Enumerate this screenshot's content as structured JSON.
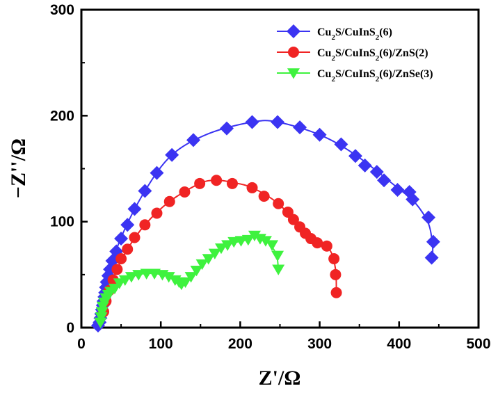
{
  "chart_data": {
    "type": "scatter",
    "title": "",
    "xlabel": "Z'/Ω",
    "ylabel": "−Z''/Ω",
    "xlim": [
      0,
      500
    ],
    "ylim": [
      0,
      300
    ],
    "xticks": [
      "0",
      "100",
      "200",
      "300",
      "400",
      "500"
    ],
    "yticks": [
      "0",
      "100",
      "200",
      "300"
    ],
    "grid": false,
    "legend_position": "top-right",
    "series": [
      {
        "name": "Cu2S/CuInS2(6)",
        "color": "#3b34f2",
        "marker": "diamond",
        "points": [
          [
            21,
            2
          ],
          [
            23,
            5
          ],
          [
            24,
            9
          ],
          [
            25,
            13
          ],
          [
            26,
            17
          ],
          [
            27,
            21
          ],
          [
            28,
            25
          ],
          [
            29,
            29
          ],
          [
            30,
            33
          ],
          [
            31,
            38
          ],
          [
            32,
            43
          ],
          [
            34,
            49
          ],
          [
            36,
            55
          ],
          [
            39,
            63
          ],
          [
            44,
            72
          ],
          [
            50,
            84
          ],
          [
            58,
            97
          ],
          [
            67,
            112
          ],
          [
            80,
            129
          ],
          [
            95,
            146
          ],
          [
            114,
            163
          ],
          [
            141,
            177
          ],
          [
            183,
            188
          ],
          [
            215,
            194
          ],
          [
            247,
            194
          ],
          [
            275,
            189
          ],
          [
            300,
            182
          ],
          [
            327,
            173
          ],
          [
            345,
            162
          ],
          [
            357,
            153
          ],
          [
            372,
            147
          ],
          [
            381,
            139
          ],
          [
            398,
            130
          ],
          [
            413,
            128
          ],
          [
            417,
            121
          ],
          [
            437,
            104
          ],
          [
            443,
            81
          ],
          [
            441,
            66
          ]
        ],
        "fit": [
          [
            21,
            2
          ],
          [
            26,
            18
          ],
          [
            34,
            48
          ],
          [
            50,
            85
          ],
          [
            80,
            129
          ],
          [
            114,
            163
          ],
          [
            160,
            183
          ],
          [
            215,
            194
          ],
          [
            247,
            194
          ],
          [
            300,
            182
          ],
          [
            345,
            163
          ],
          [
            398,
            132
          ],
          [
            420,
            118
          ],
          [
            437,
            98
          ],
          [
            442,
            78
          ],
          [
            442,
            66
          ]
        ]
      },
      {
        "name": "Cu2S/CuInS2(6)/ZnS(2)",
        "color": "#f02424",
        "marker": "circle",
        "points": [
          [
            28,
            15
          ],
          [
            31,
            25
          ],
          [
            35,
            35
          ],
          [
            40,
            45
          ],
          [
            45,
            55
          ],
          [
            50,
            65
          ],
          [
            58,
            74
          ],
          [
            67,
            85
          ],
          [
            80,
            97
          ],
          [
            95,
            108
          ],
          [
            111,
            119
          ],
          [
            130,
            128
          ],
          [
            149,
            136
          ],
          [
            170,
            139
          ],
          [
            190,
            136
          ],
          [
            215,
            132
          ],
          [
            230,
            124
          ],
          [
            248,
            117
          ],
          [
            260,
            109
          ],
          [
            267,
            102
          ],
          [
            275,
            95
          ],
          [
            282,
            89
          ],
          [
            289,
            84
          ],
          [
            297,
            80
          ],
          [
            309,
            77
          ],
          [
            318,
            65
          ],
          [
            320,
            50
          ],
          [
            321,
            33
          ]
        ],
        "fit": [
          [
            26,
            6
          ],
          [
            32,
            28
          ],
          [
            42,
            50
          ],
          [
            58,
            74
          ],
          [
            80,
            97
          ],
          [
            111,
            119
          ],
          [
            149,
            136
          ],
          [
            170,
            139
          ],
          [
            190,
            137
          ],
          [
            215,
            132
          ],
          [
            248,
            117
          ],
          [
            275,
            95
          ],
          [
            297,
            80
          ],
          [
            313,
            73
          ],
          [
            320,
            55
          ],
          [
            321,
            33
          ]
        ]
      },
      {
        "name": "Cu2S/CuInS2(6)/ZnSe(3)",
        "color": "#3ef23e",
        "marker": "triangle-down",
        "points": [
          [
            24,
            5
          ],
          [
            25,
            10
          ],
          [
            26,
            15
          ],
          [
            27,
            20
          ],
          [
            29,
            24
          ],
          [
            31,
            28
          ],
          [
            34,
            31
          ],
          [
            37,
            34
          ],
          [
            42,
            37
          ],
          [
            48,
            42
          ],
          [
            55,
            45
          ],
          [
            63,
            48
          ],
          [
            72,
            50
          ],
          [
            82,
            51
          ],
          [
            92,
            51
          ],
          [
            102,
            50
          ],
          [
            110,
            48
          ],
          [
            118,
            45
          ],
          [
            123,
            43
          ],
          [
            126,
            41
          ],
          [
            131,
            43
          ],
          [
            138,
            48
          ],
          [
            145,
            54
          ],
          [
            152,
            60
          ],
          [
            160,
            65
          ],
          [
            168,
            70
          ],
          [
            176,
            75
          ],
          [
            184,
            78
          ],
          [
            192,
            81
          ],
          [
            201,
            82
          ],
          [
            210,
            83
          ],
          [
            218,
            87
          ],
          [
            225,
            84
          ],
          [
            232,
            82
          ],
          [
            240,
            78
          ],
          [
            247,
            68
          ],
          [
            248,
            55
          ]
        ],
        "fit": [
          [
            24,
            5
          ],
          [
            31,
            28
          ],
          [
            48,
            42
          ],
          [
            72,
            50
          ],
          [
            92,
            51
          ],
          [
            110,
            48
          ],
          [
            126,
            41
          ],
          [
            138,
            48
          ],
          [
            160,
            65
          ],
          [
            184,
            78
          ],
          [
            210,
            83
          ],
          [
            218,
            86
          ],
          [
            232,
            82
          ],
          [
            245,
            70
          ],
          [
            248,
            55
          ]
        ]
      }
    ]
  }
}
